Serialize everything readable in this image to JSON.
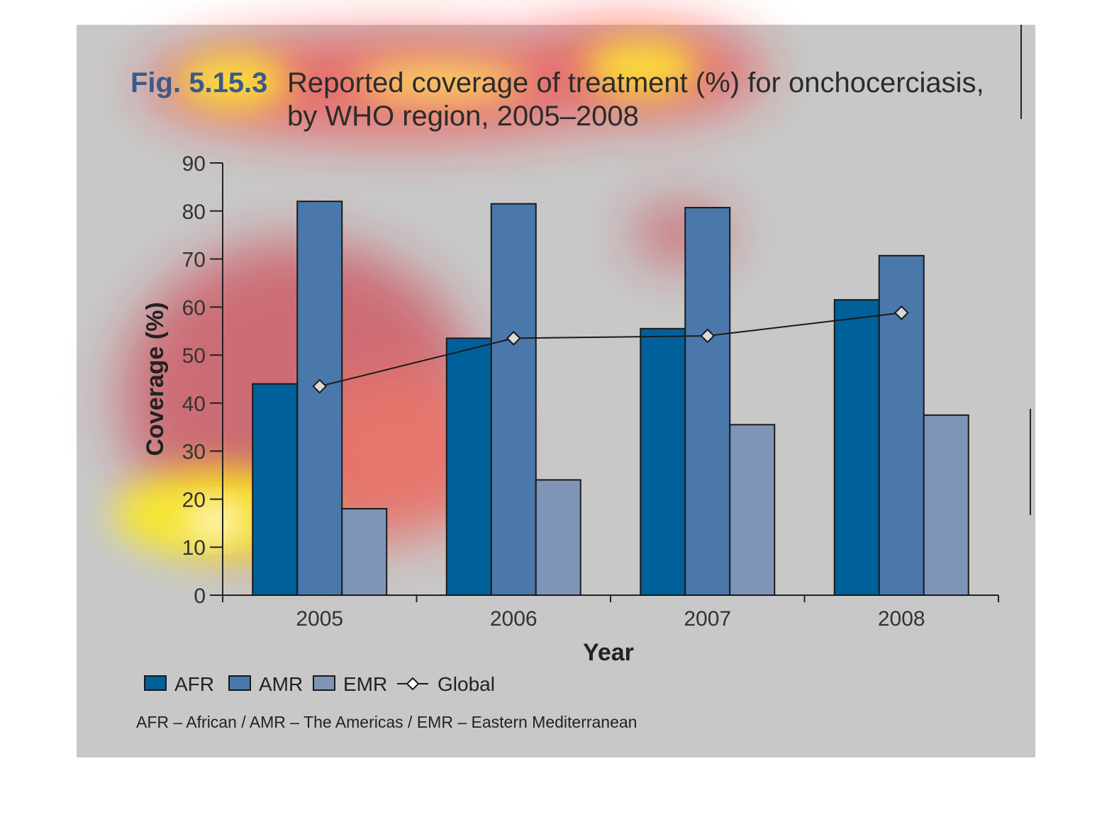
{
  "figure": {
    "label": "Fig. 5.15.3",
    "title_line1": "Reported coverage of treatment (%) for onchocerciasis,",
    "title_line2": "by WHO region, 2005–2008",
    "note": "AFR – African / AMR – The Americas / EMR – Eastern Mediterranean"
  },
  "colors": {
    "panel": "#c8c8c8",
    "title_label": "#3b5a8a",
    "AFR": "#00609a",
    "AMR": "#4a78aa",
    "EMR": "#7e95b8",
    "Global": "#1a1a1a",
    "global_marker_fill": "#d9d9d9"
  },
  "chart_data": {
    "type": "bar",
    "title": "Reported coverage of treatment (%) for onchocerciasis, by WHO region, 2005–2008",
    "xlabel": "Year",
    "ylabel": "Coverage (%)",
    "ylim": [
      0,
      90
    ],
    "yticks": [
      0,
      10,
      20,
      30,
      40,
      50,
      60,
      70,
      80,
      90
    ],
    "categories": [
      "2005",
      "2006",
      "2007",
      "2008"
    ],
    "series": [
      {
        "name": "AFR",
        "type": "bar",
        "values": [
          44,
          53.5,
          55.5,
          61.5
        ]
      },
      {
        "name": "AMR",
        "type": "bar",
        "values": [
          82,
          81.5,
          80.7,
          70.7
        ]
      },
      {
        "name": "EMR",
        "type": "bar",
        "values": [
          18,
          24,
          35.5,
          37.5
        ]
      },
      {
        "name": "Global",
        "type": "line",
        "values": [
          43.5,
          53.5,
          54,
          58.8
        ]
      }
    ],
    "legend": {
      "placement": "bottom-left",
      "entries": [
        "AFR",
        "AMR",
        "EMR",
        "Global"
      ]
    },
    "grid": false,
    "overlay": "attention heatmap"
  }
}
